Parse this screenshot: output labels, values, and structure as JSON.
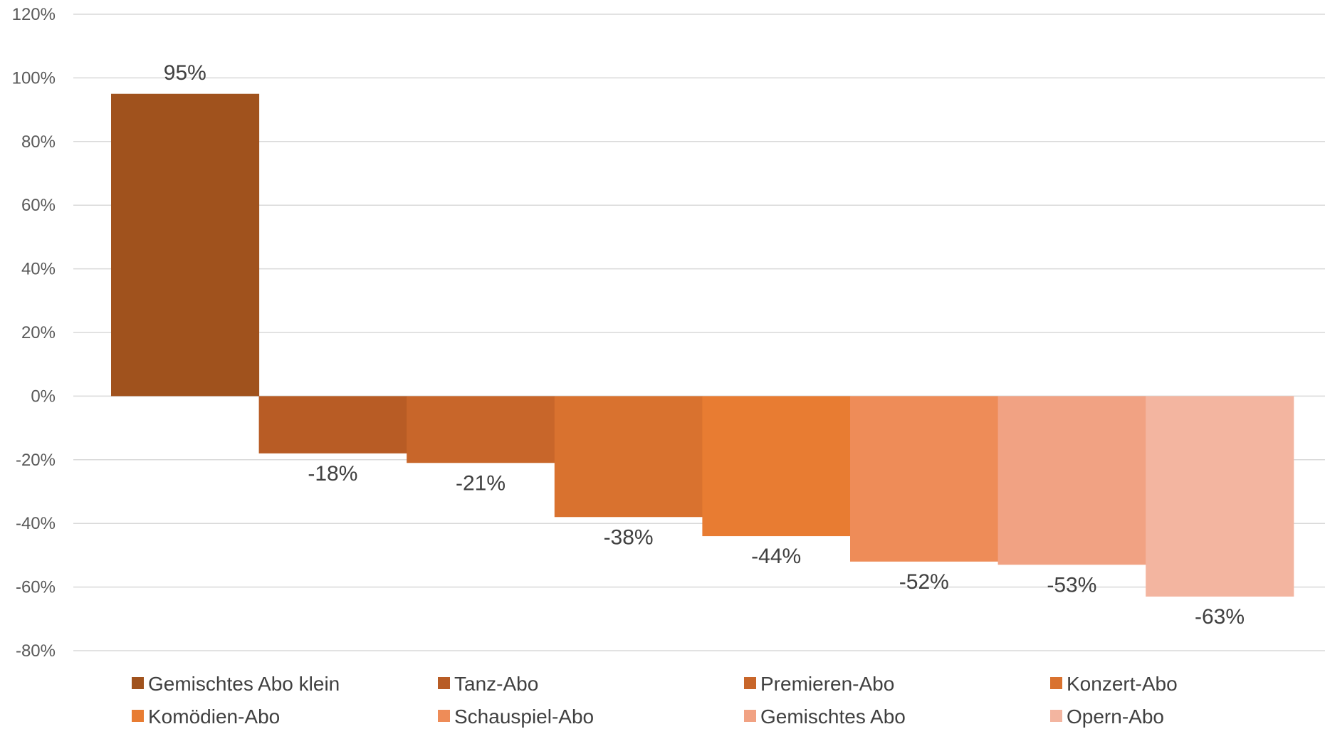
{
  "chart_data": {
    "type": "bar",
    "title": "",
    "xlabel": "",
    "ylabel": "",
    "ylim": [
      -80,
      120
    ],
    "ytick_step": 20,
    "ytick_format": "percent",
    "grid": true,
    "legend_position": "bottom",
    "categories": [
      "Gemischtes Abo klein",
      "Tanz-Abo",
      "Premieren-Abo",
      "Konzert-Abo",
      "Komödien-Abo",
      "Schauspiel-Abo",
      "Gemischtes Abo",
      "Opern-Abo"
    ],
    "values": [
      95,
      -18,
      -21,
      -38,
      -44,
      -52,
      -53,
      -63
    ],
    "data_labels": [
      "95%",
      "-18%",
      "-21%",
      "-38%",
      "-44%",
      "-52%",
      "-53%",
      "-63%"
    ],
    "colors": [
      "#A0521D",
      "#B85C25",
      "#C8662A",
      "#D9722F",
      "#E87C32",
      "#EE8C58",
      "#F1A283",
      "#F3B5A0"
    ]
  }
}
